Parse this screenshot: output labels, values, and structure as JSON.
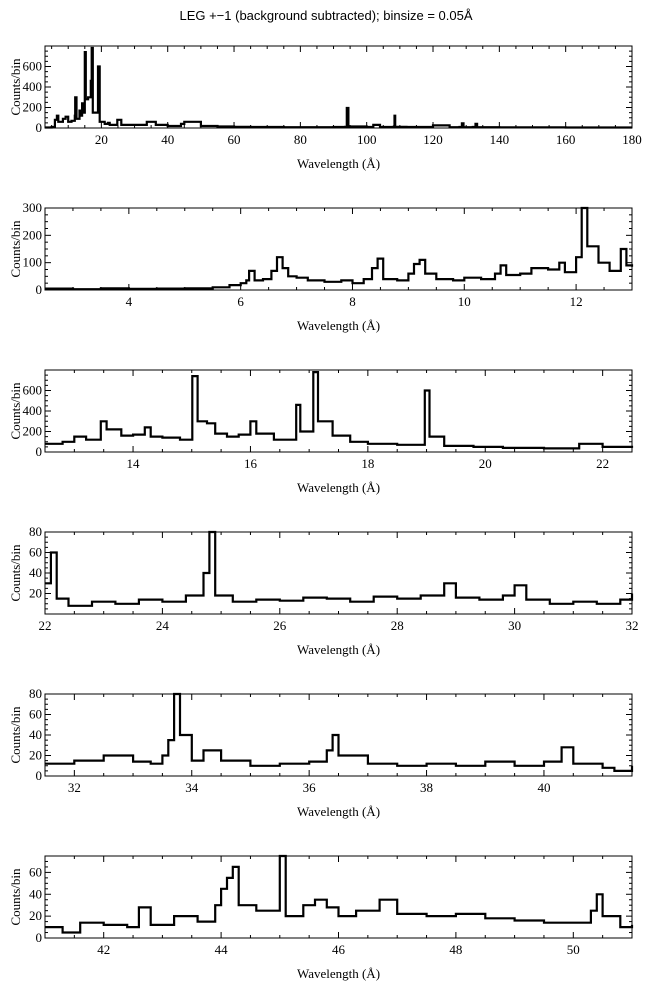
{
  "figure": {
    "title": "LEG +−1 (background subtracted); binsize = 0.05Å"
  },
  "chart_data": [
    {
      "type": "line",
      "step": true,
      "xlabel": "Wavelength (Å)",
      "ylabel": "Counts/bin",
      "xlim": [
        3,
        180
      ],
      "ylim": [
        0,
        800
      ],
      "xticks": [
        20,
        40,
        60,
        80,
        100,
        120,
        140,
        160,
        180
      ],
      "yticks": [
        0,
        200,
        400,
        600
      ],
      "series": [
        {
          "points": [
            [
              3,
              5
            ],
            [
              5,
              10
            ],
            [
              6,
              80
            ],
            [
              6.6,
              120
            ],
            [
              7,
              60
            ],
            [
              8.4,
              90
            ],
            [
              9.2,
              110
            ],
            [
              10,
              60
            ],
            [
              11,
              70
            ],
            [
              12,
              120
            ],
            [
              12.1,
              300
            ],
            [
              12.5,
              90
            ],
            [
              13.4,
              170
            ],
            [
              13.8,
              120
            ],
            [
              14.2,
              240
            ],
            [
              14.6,
              150
            ],
            [
              15.01,
              740
            ],
            [
              15.3,
              280
            ],
            [
              16,
              300
            ],
            [
              16.8,
              460
            ],
            [
              17.07,
              780
            ],
            [
              17.4,
              150
            ],
            [
              18.97,
              600
            ],
            [
              19.5,
              60
            ],
            [
              21,
              40
            ],
            [
              22,
              50
            ],
            [
              22.5,
              30
            ],
            [
              24.8,
              80
            ],
            [
              26,
              30
            ],
            [
              28.8,
              30
            ],
            [
              30,
              30
            ],
            [
              33.7,
              60
            ],
            [
              36.4,
              30
            ],
            [
              40,
              20
            ],
            [
              44,
              40
            ],
            [
              45,
              60
            ],
            [
              50,
              20
            ],
            [
              55,
              15
            ],
            [
              60,
              12
            ],
            [
              65,
              10
            ],
            [
              70,
              10
            ],
            [
              75,
              8
            ],
            [
              80,
              8
            ],
            [
              85,
              8
            ],
            [
              90,
              10
            ],
            [
              93.5,
              12
            ],
            [
              94.0,
              195
            ],
            [
              94.5,
              15
            ],
            [
              100,
              10
            ],
            [
              102,
              30
            ],
            [
              104,
              10
            ],
            [
              108.2,
              15
            ],
            [
              108.4,
              120
            ],
            [
              108.6,
              12
            ],
            [
              112,
              10
            ],
            [
              116,
              10
            ],
            [
              120,
              25
            ],
            [
              125,
              8
            ],
            [
              128,
              10
            ],
            [
              128.7,
              45
            ],
            [
              129.2,
              8
            ],
            [
              132,
              10
            ],
            [
              132.8,
              40
            ],
            [
              133.3,
              8
            ],
            [
              140,
              6
            ],
            [
              150,
              6
            ],
            [
              160,
              5
            ],
            [
              170,
              5
            ],
            [
              180,
              5
            ]
          ]
        }
      ]
    },
    {
      "type": "line",
      "step": true,
      "xlabel": "Wavelength (Å)",
      "ylabel": "Counts/bin",
      "xlim": [
        2.5,
        13
      ],
      "ylim": [
        0,
        300
      ],
      "xticks": [
        4,
        6,
        8,
        10,
        12
      ],
      "yticks": [
        0,
        100,
        200,
        300
      ],
      "series": [
        {
          "points": [
            [
              2.5,
              5
            ],
            [
              3,
              3
            ],
            [
              3.5,
              6
            ],
            [
              4,
              4
            ],
            [
              4.5,
              5
            ],
            [
              5,
              6
            ],
            [
              5.5,
              10
            ],
            [
              5.8,
              18
            ],
            [
              6,
              25
            ],
            [
              6.1,
              35
            ],
            [
              6.15,
              70
            ],
            [
              6.25,
              35
            ],
            [
              6.4,
              40
            ],
            [
              6.55,
              70
            ],
            [
              6.65,
              120
            ],
            [
              6.75,
              80
            ],
            [
              6.85,
              50
            ],
            [
              7,
              45
            ],
            [
              7.2,
              35
            ],
            [
              7.5,
              30
            ],
            [
              7.8,
              35
            ],
            [
              8.0,
              25
            ],
            [
              8.2,
              40
            ],
            [
              8.35,
              80
            ],
            [
              8.45,
              115
            ],
            [
              8.55,
              40
            ],
            [
              8.8,
              35
            ],
            [
              9.0,
              60
            ],
            [
              9.1,
              95
            ],
            [
              9.2,
              110
            ],
            [
              9.3,
              60
            ],
            [
              9.5,
              40
            ],
            [
              9.8,
              35
            ],
            [
              10,
              45
            ],
            [
              10.3,
              40
            ],
            [
              10.55,
              60
            ],
            [
              10.65,
              90
            ],
            [
              10.75,
              55
            ],
            [
              11,
              60
            ],
            [
              11.2,
              80
            ],
            [
              11.5,
              75
            ],
            [
              11.7,
              100
            ],
            [
              11.8,
              65
            ],
            [
              12.0,
              120
            ],
            [
              12.1,
              300
            ],
            [
              12.2,
              160
            ],
            [
              12.4,
              100
            ],
            [
              12.6,
              70
            ],
            [
              12.8,
              150
            ],
            [
              12.9,
              90
            ],
            [
              13,
              85
            ]
          ]
        }
      ]
    },
    {
      "type": "line",
      "step": true,
      "xlabel": "Wavelength (Å)",
      "ylabel": "Counts/bin",
      "xlim": [
        12.5,
        22.5
      ],
      "ylim": [
        0,
        800
      ],
      "xticks": [
        14,
        16,
        18,
        20,
        22
      ],
      "yticks": [
        0,
        200,
        400,
        600
      ],
      "series": [
        {
          "points": [
            [
              12.5,
              80
            ],
            [
              12.8,
              100
            ],
            [
              13.0,
              150
            ],
            [
              13.2,
              120
            ],
            [
              13.45,
              300
            ],
            [
              13.55,
              220
            ],
            [
              13.8,
              160
            ],
            [
              14.0,
              170
            ],
            [
              14.2,
              240
            ],
            [
              14.3,
              150
            ],
            [
              14.5,
              140
            ],
            [
              14.8,
              120
            ],
            [
              15.01,
              740
            ],
            [
              15.1,
              300
            ],
            [
              15.26,
              280
            ],
            [
              15.4,
              180
            ],
            [
              15.6,
              150
            ],
            [
              15.8,
              170
            ],
            [
              16.0,
              300
            ],
            [
              16.1,
              180
            ],
            [
              16.4,
              120
            ],
            [
              16.78,
              460
            ],
            [
              16.85,
              200
            ],
            [
              17.07,
              780
            ],
            [
              17.15,
              300
            ],
            [
              17.4,
              160
            ],
            [
              17.7,
              100
            ],
            [
              18.0,
              80
            ],
            [
              18.5,
              70
            ],
            [
              18.97,
              600
            ],
            [
              19.05,
              150
            ],
            [
              19.3,
              60
            ],
            [
              19.8,
              50
            ],
            [
              20.3,
              40
            ],
            [
              21.0,
              35
            ],
            [
              21.6,
              80
            ],
            [
              22.0,
              50
            ],
            [
              22.5,
              40
            ]
          ]
        }
      ]
    },
    {
      "type": "line",
      "step": true,
      "xlabel": "Wavelength (Å)",
      "ylabel": "Counts/bin",
      "xlim": [
        22,
        32
      ],
      "ylim": [
        0,
        80
      ],
      "xticks": [
        22,
        24,
        26,
        28,
        30,
        32
      ],
      "yticks": [
        20,
        40,
        60,
        80
      ],
      "series": [
        {
          "points": [
            [
              22.0,
              30
            ],
            [
              22.1,
              60
            ],
            [
              22.2,
              15
            ],
            [
              22.4,
              8
            ],
            [
              22.8,
              12
            ],
            [
              23.2,
              10
            ],
            [
              23.6,
              14
            ],
            [
              24.0,
              12
            ],
            [
              24.4,
              18
            ],
            [
              24.7,
              40
            ],
            [
              24.8,
              80
            ],
            [
              24.9,
              18
            ],
            [
              25.2,
              12
            ],
            [
              25.6,
              14
            ],
            [
              26.0,
              13
            ],
            [
              26.4,
              16
            ],
            [
              26.8,
              15
            ],
            [
              27.2,
              12
            ],
            [
              27.6,
              17
            ],
            [
              28.0,
              15
            ],
            [
              28.4,
              18
            ],
            [
              28.8,
              30
            ],
            [
              29.0,
              16
            ],
            [
              29.4,
              14
            ],
            [
              29.8,
              18
            ],
            [
              30.0,
              28
            ],
            [
              30.2,
              14
            ],
            [
              30.6,
              10
            ],
            [
              31.0,
              12
            ],
            [
              31.4,
              10
            ],
            [
              31.8,
              14
            ],
            [
              32.0,
              20
            ]
          ]
        }
      ]
    },
    {
      "type": "line",
      "step": true,
      "xlabel": "Wavelength (Å)",
      "ylabel": "Counts/bin",
      "xlim": [
        31.5,
        41.5
      ],
      "ylim": [
        0,
        80
      ],
      "xticks": [
        32,
        34,
        36,
        38,
        40
      ],
      "yticks": [
        0,
        20,
        40,
        60,
        80
      ],
      "series": [
        {
          "points": [
            [
              31.5,
              12
            ],
            [
              32.0,
              15
            ],
            [
              32.5,
              20
            ],
            [
              33.0,
              14
            ],
            [
              33.3,
              12
            ],
            [
              33.5,
              20
            ],
            [
              33.6,
              35
            ],
            [
              33.7,
              80
            ],
            [
              33.8,
              40
            ],
            [
              34.0,
              15
            ],
            [
              34.2,
              25
            ],
            [
              34.5,
              15
            ],
            [
              35.0,
              10
            ],
            [
              35.5,
              12
            ],
            [
              36.0,
              14
            ],
            [
              36.3,
              25
            ],
            [
              36.4,
              40
            ],
            [
              36.5,
              20
            ],
            [
              37.0,
              12
            ],
            [
              37.5,
              10
            ],
            [
              38.0,
              12
            ],
            [
              38.5,
              10
            ],
            [
              39.0,
              14
            ],
            [
              39.5,
              10
            ],
            [
              40.0,
              14
            ],
            [
              40.3,
              28
            ],
            [
              40.5,
              12
            ],
            [
              41.0,
              8
            ],
            [
              41.2,
              5
            ],
            [
              41.5,
              10
            ]
          ]
        }
      ]
    },
    {
      "type": "line",
      "step": true,
      "xlabel": "Wavelength (Å)",
      "ylabel": "Counts/bin",
      "xlim": [
        41,
        51
      ],
      "ylim": [
        0,
        75
      ],
      "xticks": [
        42,
        44,
        46,
        48,
        50
      ],
      "yticks": [
        0,
        20,
        40,
        60
      ],
      "series": [
        {
          "points": [
            [
              41.0,
              10
            ],
            [
              41.3,
              5
            ],
            [
              41.6,
              14
            ],
            [
              42.0,
              12
            ],
            [
              42.4,
              10
            ],
            [
              42.6,
              28
            ],
            [
              42.8,
              12
            ],
            [
              43.2,
              20
            ],
            [
              43.6,
              15
            ],
            [
              43.9,
              30
            ],
            [
              44.0,
              45
            ],
            [
              44.1,
              55
            ],
            [
              44.2,
              65
            ],
            [
              44.3,
              30
            ],
            [
              44.6,
              25
            ],
            [
              45.0,
              75
            ],
            [
              45.1,
              20
            ],
            [
              45.4,
              30
            ],
            [
              45.6,
              35
            ],
            [
              45.8,
              28
            ],
            [
              46.0,
              20
            ],
            [
              46.3,
              25
            ],
            [
              46.7,
              35
            ],
            [
              47.0,
              22
            ],
            [
              47.5,
              20
            ],
            [
              48.0,
              22
            ],
            [
              48.5,
              18
            ],
            [
              49.0,
              16
            ],
            [
              49.5,
              14
            ],
            [
              50.0,
              14
            ],
            [
              50.3,
              25
            ],
            [
              50.4,
              40
            ],
            [
              50.5,
              20
            ],
            [
              50.8,
              10
            ],
            [
              51.0,
              12
            ]
          ]
        }
      ]
    }
  ]
}
